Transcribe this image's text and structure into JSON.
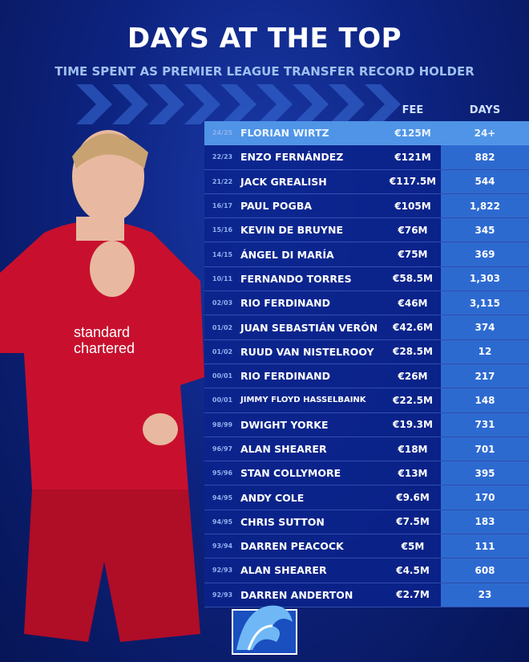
{
  "header": {
    "title": "DAYS AT THE TOP",
    "subtitle": "TIME SPENT AS PREMIER LEAGUE TRANSFER RECORD HOLDER"
  },
  "columns": {
    "fee": "FEE",
    "days": "DAYS"
  },
  "colors": {
    "highlight": "#4f94e6",
    "row": "#0a238c",
    "days_cell": "#2d6ad0",
    "shirt": "#c8102e"
  },
  "sponsor_text": "standard chartered",
  "rows": [
    {
      "season": "24/25",
      "name": "FLORIAN WIRTZ",
      "fee": "€125M",
      "days": "24+"
    },
    {
      "season": "22/23",
      "name": "ENZO FERNÁNDEZ",
      "fee": "€121M",
      "days": "882"
    },
    {
      "season": "21/22",
      "name": "JACK GREALISH",
      "fee": "€117.5M",
      "days": "544"
    },
    {
      "season": "16/17",
      "name": "PAUL POGBA",
      "fee": "€105M",
      "days": "1,822"
    },
    {
      "season": "15/16",
      "name": "KEVIN DE BRUYNE",
      "fee": "€76M",
      "days": "345"
    },
    {
      "season": "14/15",
      "name": "ÁNGEL DI MARÍA",
      "fee": "€75M",
      "days": "369"
    },
    {
      "season": "10/11",
      "name": "FERNANDO TORRES",
      "fee": "€58.5M",
      "days": "1,303"
    },
    {
      "season": "02/03",
      "name": "RIO FERDINAND",
      "fee": "€46M",
      "days": "3,115"
    },
    {
      "season": "01/02",
      "name": "JUAN SEBASTIÁN VERÓN",
      "fee": "€42.6M",
      "days": "374"
    },
    {
      "season": "01/02",
      "name": "RUUD VAN NISTELROOY",
      "fee": "€28.5M",
      "days": "12"
    },
    {
      "season": "00/01",
      "name": "RIO FERDINAND",
      "fee": "€26M",
      "days": "217"
    },
    {
      "season": "00/01",
      "name": "JIMMY FLOYD HASSELBAINK",
      "fee": "€22.5M",
      "days": "148"
    },
    {
      "season": "98/99",
      "name": "DWIGHT YORKE",
      "fee": "€19.3M",
      "days": "731"
    },
    {
      "season": "96/97",
      "name": "ALAN SHEARER",
      "fee": "€18M",
      "days": "701"
    },
    {
      "season": "95/96",
      "name": "STAN COLLYMORE",
      "fee": "€13M",
      "days": "395"
    },
    {
      "season": "94/95",
      "name": "ANDY COLE",
      "fee": "€9.6M",
      "days": "170"
    },
    {
      "season": "94/95",
      "name": "CHRIS SUTTON",
      "fee": "€7.5M",
      "days": "183"
    },
    {
      "season": "93/94",
      "name": "DARREN PEACOCK",
      "fee": "€5M",
      "days": "111"
    },
    {
      "season": "92/93",
      "name": "ALAN SHEARER",
      "fee": "€4.5M",
      "days": "608"
    },
    {
      "season": "92/93",
      "name": "DARREN ANDERTON",
      "fee": "€2.7M",
      "days": "23"
    }
  ]
}
